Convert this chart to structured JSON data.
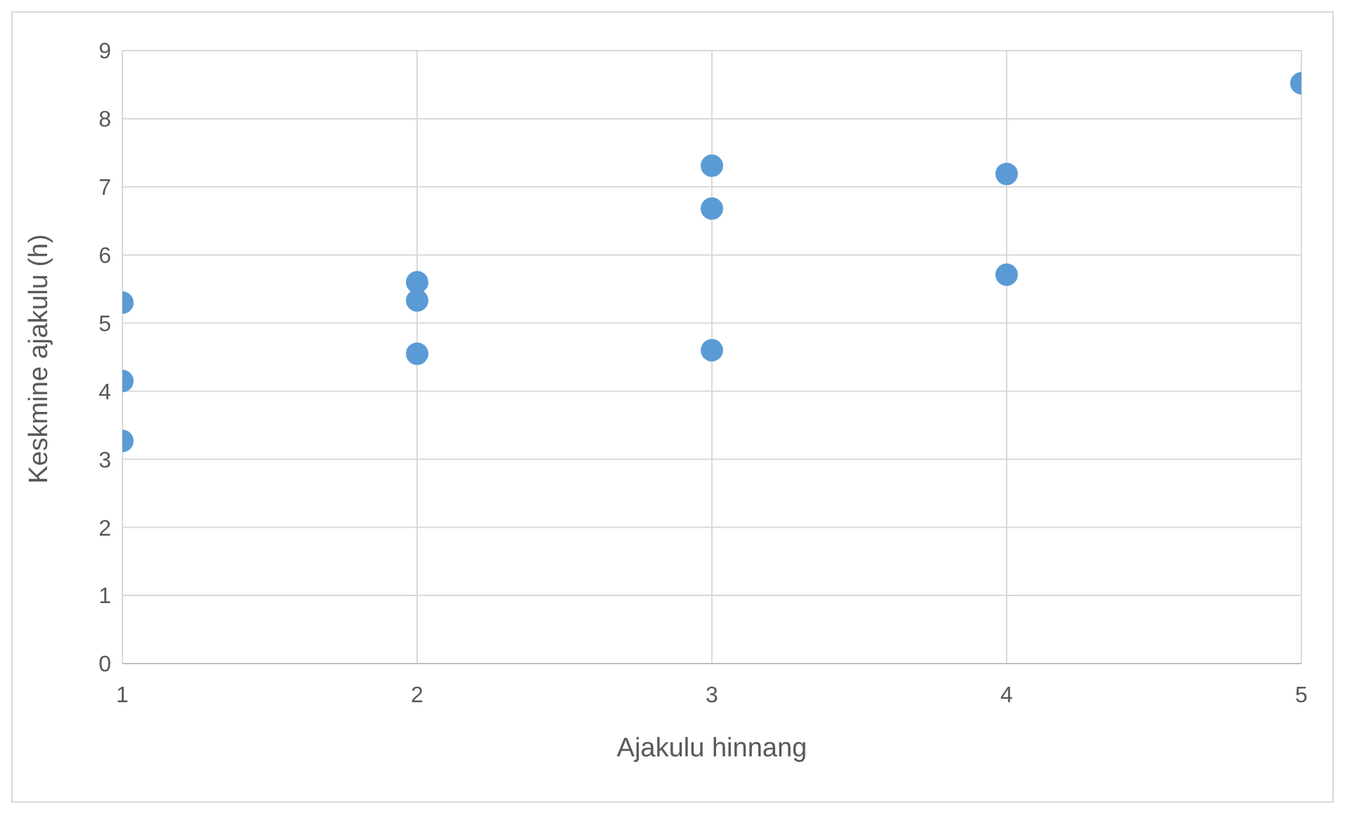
{
  "chart_data": {
    "type": "scatter",
    "xlabel": "Ajakulu hinnang",
    "ylabel": "Keskmine ajakulu (h)",
    "x": [
      1,
      1,
      1,
      2,
      2,
      2,
      3,
      3,
      3,
      4,
      4,
      5
    ],
    "series": [
      {
        "color": "#5b9bd5",
        "values": [
          5.3,
          4.15,
          3.27,
          5.6,
          5.33,
          4.55,
          7.31,
          6.68,
          4.6,
          7.19,
          5.71,
          8.52
        ]
      }
    ],
    "xlim": [
      1,
      5
    ],
    "xticks": [
      1,
      2,
      3,
      4,
      5
    ],
    "ylim": [
      0,
      9
    ],
    "yticks": [
      0,
      1,
      2,
      3,
      4,
      5,
      6,
      7,
      8,
      9
    ],
    "grid": true,
    "marker": "circle"
  }
}
